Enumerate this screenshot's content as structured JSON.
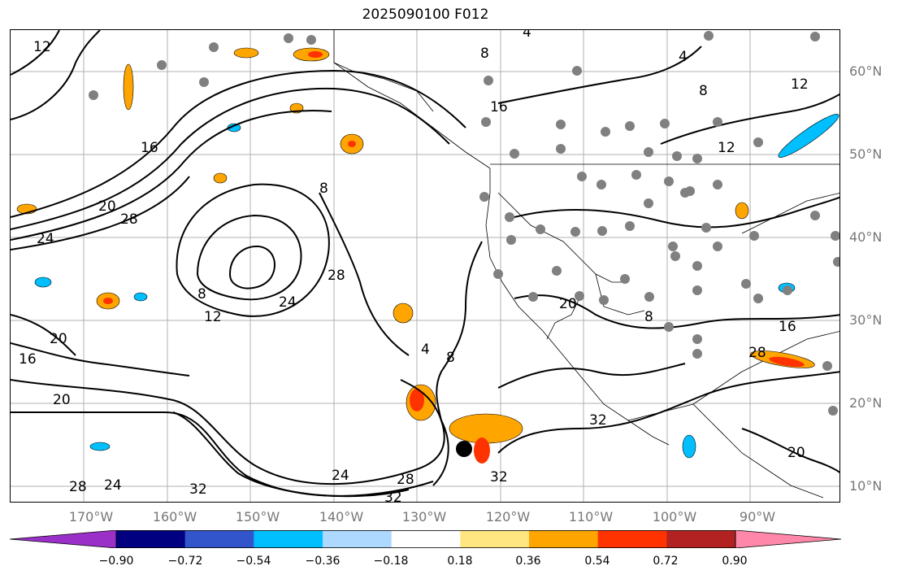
{
  "title": "2025090100 F012",
  "lat_labels": [
    "60°N",
    "50°N",
    "40°N",
    "30°N",
    "20°N",
    "10°N"
  ],
  "lon_labels": [
    "170°W",
    "160°W",
    "150°W",
    "140°W",
    "130°W",
    "120°W",
    "110°W",
    "100°W",
    "90°W"
  ],
  "contour_labels": [
    "12",
    "8",
    "4",
    "4",
    "16",
    "12",
    "8",
    "12",
    "28",
    "24",
    "20",
    "16",
    "8",
    "20",
    "16",
    "8",
    "24",
    "28",
    "32",
    "20",
    "24",
    "28",
    "32",
    "12",
    "4",
    "8",
    "20",
    "8",
    "28",
    "16",
    "32",
    "20",
    "24",
    "28",
    "32"
  ],
  "colorbar": {
    "ticks": [
      "−0.90",
      "−0.72",
      "−0.54",
      "−0.36",
      "−0.18",
      "0.18",
      "0.36",
      "0.54",
      "0.72",
      "0.90"
    ],
    "colors": [
      "#9b30c9",
      "#000080",
      "#3355cc",
      "#00bfff",
      "#add8ff",
      "#ffffff",
      "#ffe680",
      "#ffa500",
      "#ff3300",
      "#b22222",
      "#ff88aa"
    ]
  },
  "shading_colors": {
    "orange": "#ffa500",
    "red": "#ff3300",
    "yellow": "#ffe680",
    "cyan": "#00bfff",
    "lightblue": "#add8ff",
    "marker": "#808080"
  }
}
